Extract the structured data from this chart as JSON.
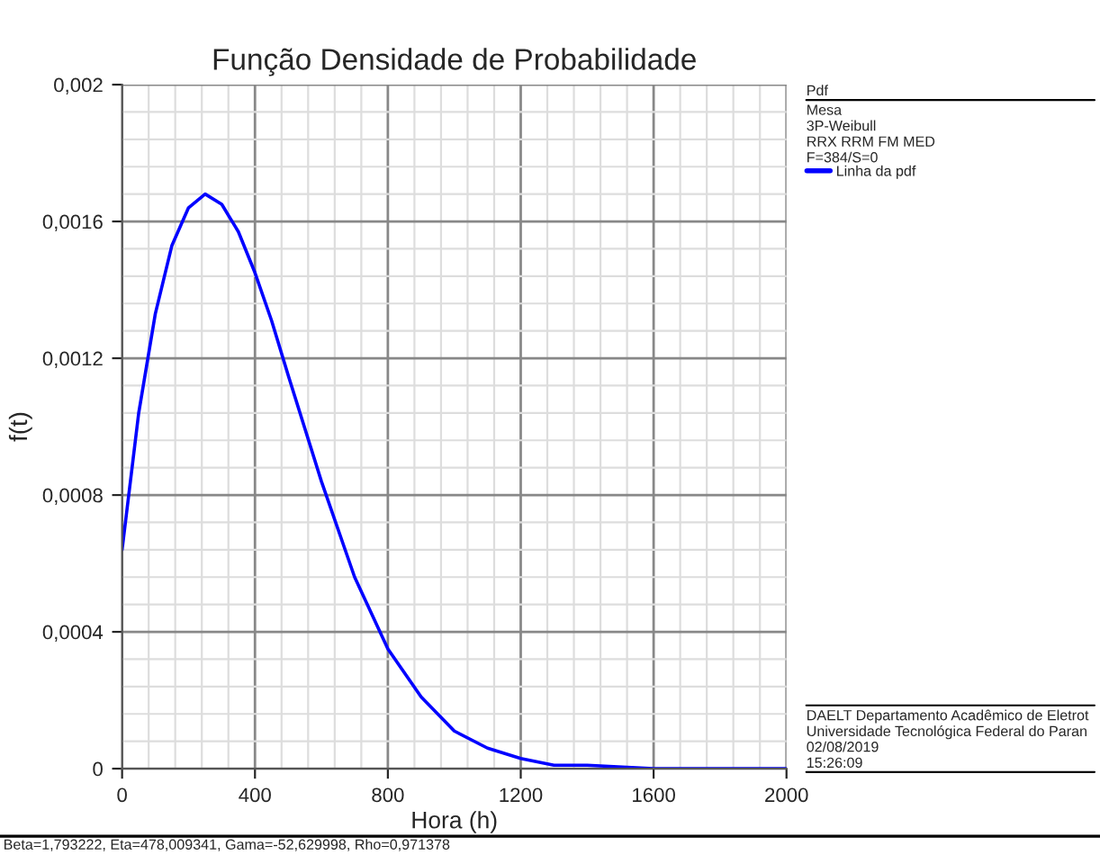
{
  "chart_data": {
    "type": "line",
    "title": "Função Densidade de Probabilidade",
    "xlabel": "Hora (h)",
    "ylabel": "f(t)",
    "x": [
      0,
      50,
      100,
      150,
      200,
      250,
      300,
      350,
      400,
      450,
      500,
      600,
      700,
      800,
      900,
      1000,
      1100,
      1200,
      1300,
      1400,
      1600,
      1800,
      2000
    ],
    "series": [
      {
        "name": "Linha da pdf",
        "color": "#0000ff",
        "values": [
          0.00064,
          0.00104,
          0.00133,
          0.00153,
          0.00164,
          0.00168,
          0.00165,
          0.00157,
          0.00145,
          0.00131,
          0.00115,
          0.00084,
          0.00056,
          0.00035,
          0.00021,
          0.00011,
          6e-05,
          3e-05,
          1e-05,
          1e-05,
          0,
          0,
          0
        ]
      }
    ],
    "xlim": [
      0,
      2000
    ],
    "xticks": [
      0,
      400,
      800,
      1200,
      1600,
      2000
    ],
    "ylim": [
      0,
      0.002
    ],
    "yticks": [
      {
        "value": 0,
        "label": "0"
      },
      {
        "value": 0.0004,
        "label": "0,0004"
      },
      {
        "value": 0.0008,
        "label": "0,0008"
      },
      {
        "value": 0.0012,
        "label": "0,0012"
      },
      {
        "value": 0.0016,
        "label": "0,0016"
      },
      {
        "value": 0.002,
        "label": "0,002"
      }
    ],
    "grid": true,
    "legend": "right",
    "marker": "none",
    "line_style": "solid",
    "annotations": [
      "Pdf",
      "Mesa",
      "3P-Weibull",
      "RRX RRM FM MED",
      "F=384/S=0",
      "DAELT Departamento Acadêmico de Eletrot",
      "Universidade Tecnológica Federal do Paran",
      "02/08/2019",
      "15:26:09",
      "Beta=1,793222, Eta=478,009341, Gama=-52,629998, Rho=0,971378"
    ]
  }
}
